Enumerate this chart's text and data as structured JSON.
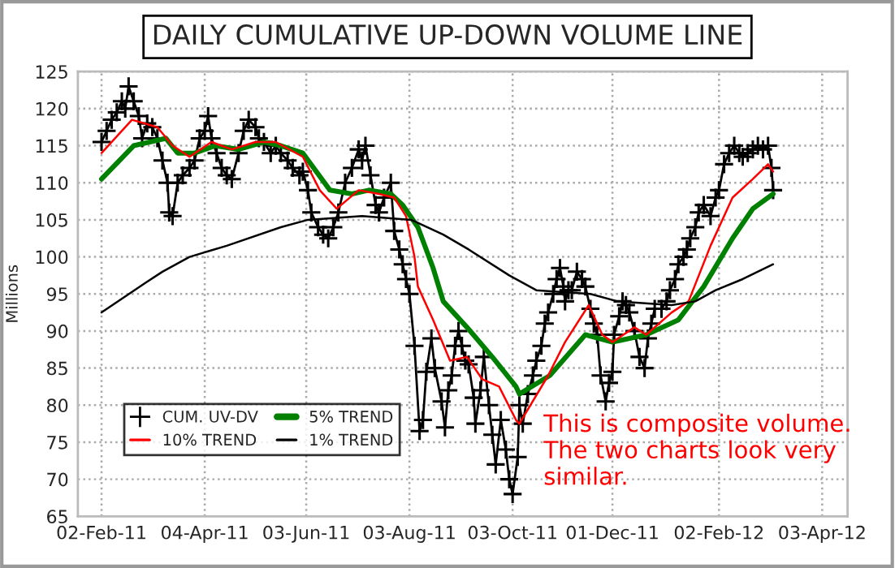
{
  "chart_data": {
    "type": "line",
    "title": "DAILY CUMULATIVE UP-DOWN VOLUME LINE",
    "ylabel": "Millions",
    "xlim": [
      "2011-01-19",
      "2012-04-18"
    ],
    "ylim": [
      65,
      125
    ],
    "xticks": [
      {
        "value": "2011-02-02",
        "label": "02-Feb-11"
      },
      {
        "value": "2011-04-04",
        "label": "04-Apr-11"
      },
      {
        "value": "2011-06-03",
        "label": "03-Jun-11"
      },
      {
        "value": "2011-08-03",
        "label": "03-Aug-11"
      },
      {
        "value": "2011-10-03",
        "label": "03-Oct-11"
      },
      {
        "value": "2011-12-01",
        "label": "01-Dec-11"
      },
      {
        "value": "2012-02-02",
        "label": "02-Feb-12"
      },
      {
        "value": "2012-04-03",
        "label": "03-Apr-12"
      }
    ],
    "yticks": [
      65,
      70,
      75,
      80,
      85,
      90,
      95,
      100,
      105,
      110,
      115,
      120,
      125
    ],
    "grid": true,
    "legend": "bottom left",
    "annotations": [
      "This is composite volume.  The two charts look very similar."
    ],
    "series": [
      {
        "name": "CUM. UV-DV",
        "color": "#000000",
        "marker": "cross",
        "x": [
          "2011-02-02",
          "2011-02-05",
          "2011-02-08",
          "2011-02-11",
          "2011-02-14",
          "2011-02-16",
          "2011-02-18",
          "2011-02-21",
          "2011-02-24",
          "2011-02-26",
          "2011-03-01",
          "2011-03-04",
          "2011-03-07",
          "2011-03-10",
          "2011-03-13",
          "2011-03-14",
          "2011-03-16",
          "2011-03-19",
          "2011-03-22",
          "2011-03-26",
          "2011-03-29",
          "2011-04-01",
          "2011-04-04",
          "2011-04-06",
          "2011-04-08",
          "2011-04-11",
          "2011-04-14",
          "2011-04-17",
          "2011-04-20",
          "2011-04-24",
          "2011-04-27",
          "2011-04-30",
          "2011-05-04",
          "2011-05-06",
          "2011-05-09",
          "2011-05-13",
          "2011-05-16",
          "2011-05-19",
          "2011-05-23",
          "2011-05-26",
          "2011-05-30",
          "2011-06-01",
          "2011-06-04",
          "2011-06-06",
          "2011-06-10",
          "2011-06-13",
          "2011-06-16",
          "2011-06-19",
          "2011-06-22",
          "2011-06-26",
          "2011-06-30",
          "2011-07-04",
          "2011-07-06",
          "2011-07-08",
          "2011-07-11",
          "2011-07-14",
          "2011-07-16",
          "2011-07-19",
          "2011-07-23",
          "2011-07-25",
          "2011-07-28",
          "2011-07-30",
          "2011-08-01",
          "2011-08-03",
          "2011-08-06",
          "2011-08-09",
          "2011-08-11",
          "2011-08-13",
          "2011-08-16",
          "2011-08-18",
          "2011-08-22",
          "2011-08-24",
          "2011-08-26",
          "2011-08-28",
          "2011-08-30",
          "2011-09-01",
          "2011-09-03",
          "2011-09-05",
          "2011-09-07",
          "2011-09-10",
          "2011-09-11",
          "2011-09-14",
          "2011-09-16",
          "2011-09-19",
          "2011-09-21",
          "2011-09-23",
          "2011-09-26",
          "2011-09-29",
          "2011-10-01",
          "2011-10-03",
          "2011-10-06",
          "2011-10-07",
          "2011-10-09",
          "2011-10-12",
          "2011-10-15",
          "2011-10-17",
          "2011-10-20",
          "2011-10-22",
          "2011-10-24",
          "2011-10-27",
          "2011-10-29",
          "2011-10-31",
          "2011-11-02",
          "2011-11-03",
          "2011-11-05",
          "2011-11-07",
          "2011-11-10",
          "2011-11-13",
          "2011-11-15",
          "2011-11-18",
          "2011-11-20",
          "2011-11-22",
          "2011-11-24",
          "2011-11-27",
          "2011-11-29",
          "2011-12-01",
          "2011-12-02",
          "2011-12-05",
          "2011-12-07",
          "2011-12-09",
          "2011-12-11",
          "2011-12-14",
          "2011-12-17",
          "2011-12-20",
          "2011-12-22",
          "2011-12-24",
          "2011-12-26",
          "2011-12-30",
          "2012-01-02",
          "2012-01-04",
          "2012-01-07",
          "2012-01-09",
          "2012-01-12",
          "2012-01-14",
          "2012-01-16",
          "2012-01-19",
          "2012-01-21",
          "2012-01-24",
          "2012-01-28",
          "2012-01-31",
          "2012-02-02",
          "2012-02-05",
          "2012-02-08",
          "2012-02-11",
          "2012-02-14",
          "2012-02-16",
          "2012-02-19",
          "2012-02-22",
          "2012-02-25",
          "2012-02-28",
          "2012-03-02",
          "2012-03-04",
          "2012-03-05"
        ],
        "values": [
          115.5,
          117,
          118.5,
          119.5,
          121,
          120,
          123,
          121,
          119,
          116,
          118,
          117.5,
          116,
          113,
          110,
          106,
          105.5,
          110,
          111,
          112,
          113,
          116,
          117,
          119,
          116,
          114,
          112,
          111,
          110.5,
          114,
          117,
          118.5,
          117.5,
          116,
          115.5,
          114,
          115,
          114,
          113,
          112,
          111,
          111.5,
          109,
          106,
          104,
          103,
          102.5,
          104,
          106,
          110,
          112,
          114.5,
          113,
          115,
          111,
          107,
          106,
          108,
          110,
          103.5,
          101,
          99,
          97,
          95,
          88,
          76.5,
          78,
          84.5,
          89,
          85,
          80.5,
          77,
          82,
          84,
          88,
          90,
          88,
          86,
          85.5,
          81,
          77.5,
          82,
          86.5,
          80,
          76,
          72,
          78,
          74,
          70,
          68,
          73,
          80,
          77.5,
          81.5,
          84,
          86,
          88,
          91,
          92.5,
          95,
          97,
          98.5,
          96,
          94,
          95.5,
          95.5,
          98,
          97,
          96,
          93,
          91,
          89.5,
          84,
          80.5,
          83,
          84.5,
          89.5,
          92,
          94,
          93.5,
          92.5,
          90,
          86.5,
          85,
          89,
          91,
          93,
          93,
          94,
          95.5,
          97,
          99,
          100,
          101,
          102.5,
          104,
          106,
          107,
          105.5,
          108,
          109,
          112.5,
          114,
          115,
          114,
          113.5,
          114,
          114.5,
          115,
          114.5,
          115,
          112,
          109
        ]
      },
      {
        "name": "5% TREND",
        "color": "#008000",
        "x": [
          "2011-02-02",
          "2011-02-21",
          "2011-03-12",
          "2011-03-19",
          "2011-03-29",
          "2011-04-10",
          "2011-04-24",
          "2011-05-09",
          "2011-05-19",
          "2011-06-01",
          "2011-06-17",
          "2011-06-30",
          "2011-07-10",
          "2011-07-23",
          "2011-07-30",
          "2011-08-08",
          "2011-08-17",
          "2011-08-23",
          "2011-09-06",
          "2011-09-21",
          "2011-10-05",
          "2011-10-07",
          "2011-10-25",
          "2011-11-15",
          "2011-12-01",
          "2011-12-21",
          "2012-01-09",
          "2012-01-24",
          "2012-02-10",
          "2012-02-22",
          "2012-03-05"
        ],
        "values": [
          110.5,
          115,
          116,
          114,
          114,
          115,
          114.5,
          115.5,
          115,
          114,
          109,
          108.5,
          109,
          108.5,
          107,
          104,
          98.5,
          94,
          90.5,
          86.5,
          82.5,
          81.5,
          84,
          89.5,
          88.5,
          89.5,
          91.5,
          96,
          102.5,
          106.5,
          108.5
        ]
      },
      {
        "name": "10% TREND",
        "color": "#ff0000",
        "x": [
          "2011-02-02",
          "2011-02-20",
          "2011-03-07",
          "2011-03-16",
          "2011-03-26",
          "2011-04-08",
          "2011-04-20",
          "2011-05-04",
          "2011-05-16",
          "2011-06-01",
          "2011-06-11",
          "2011-06-21",
          "2011-07-04",
          "2011-07-16",
          "2011-07-25",
          "2011-08-01",
          "2011-08-06",
          "2011-08-08",
          "2011-08-17",
          "2011-08-27",
          "2011-09-06",
          "2011-09-15",
          "2011-09-25",
          "2011-10-05",
          "2011-10-07",
          "2011-10-24",
          "2011-11-03",
          "2011-11-17",
          "2011-11-25",
          "2011-12-01",
          "2011-12-14",
          "2011-12-21",
          "2012-01-05",
          "2012-01-15",
          "2012-01-28",
          "2012-02-10",
          "2012-02-22",
          "2012-03-02",
          "2012-03-05"
        ],
        "values": [
          114,
          118.5,
          117.5,
          115,
          113.5,
          115.5,
          114.5,
          115.5,
          115.5,
          113.5,
          109,
          106.5,
          109,
          108.5,
          108,
          105.5,
          100,
          96,
          91.5,
          86,
          86.5,
          83.5,
          82.5,
          78,
          77.5,
          84,
          88.5,
          93.5,
          89.5,
          88.5,
          90.5,
          89.5,
          92.5,
          94,
          101.5,
          108,
          110.5,
          112.5,
          111.5
        ]
      },
      {
        "name": "1% TREND",
        "color": "#000000",
        "x": [
          "2011-02-02",
          "2011-02-28",
          "2011-03-10",
          "2011-03-26",
          "2011-04-17",
          "2011-05-19",
          "2011-06-04",
          "2011-07-06",
          "2011-08-04",
          "2011-08-23",
          "2011-09-07",
          "2011-10-01",
          "2011-10-17",
          "2011-11-18",
          "2011-12-04",
          "2012-01-05",
          "2012-01-19",
          "2012-01-31",
          "2012-02-16",
          "2012-03-05"
        ],
        "values": [
          92.5,
          96.5,
          98,
          100,
          101.5,
          104,
          105,
          105.5,
          105,
          103,
          101,
          97.5,
          95.5,
          95,
          94,
          93.5,
          94,
          95.5,
          97,
          99
        ]
      }
    ]
  }
}
